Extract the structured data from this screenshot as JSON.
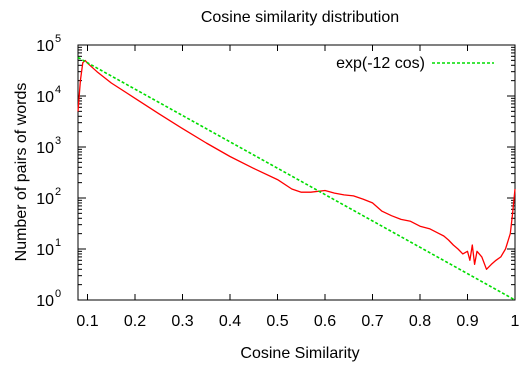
{
  "chart_data": {
    "type": "line",
    "title": "Cosine similarity distribution",
    "xlabel": "Cosine Similarity",
    "ylabel": "Number of pairs of words",
    "xlim": [
      0.08,
      1.0
    ],
    "ylim": [
      1,
      100000
    ],
    "y_scale": "log",
    "x_ticks": [
      0.1,
      0.2,
      0.3,
      0.4,
      0.5,
      0.6,
      0.7,
      0.8,
      0.9,
      1.0
    ],
    "x_tick_labels": [
      "0.1",
      "0.2",
      "0.3",
      "0.4",
      "0.5",
      "0.6",
      "0.7",
      "0.8",
      "0.9",
      "1"
    ],
    "y_tick_exponents": [
      "0",
      "1",
      "2",
      "3",
      "4",
      "5"
    ],
    "y_tick_base": "10",
    "grid": false,
    "legend_position": "top-right",
    "colors": {
      "observed": "#ff0000",
      "fit": "#00dd00"
    },
    "series": [
      {
        "key": "observed",
        "style": "solid",
        "x": [
          0.08,
          0.085,
          0.09,
          0.095,
          0.1,
          0.12,
          0.15,
          0.2,
          0.25,
          0.3,
          0.35,
          0.4,
          0.45,
          0.5,
          0.53,
          0.55,
          0.57,
          0.6,
          0.62,
          0.64,
          0.66,
          0.68,
          0.7,
          0.72,
          0.74,
          0.76,
          0.78,
          0.8,
          0.82,
          0.84,
          0.85,
          0.86,
          0.87,
          0.88,
          0.89,
          0.9,
          0.905,
          0.91,
          0.915,
          0.92,
          0.93,
          0.94,
          0.95,
          0.96,
          0.97,
          0.98,
          0.99,
          0.995,
          1.0
        ],
        "values": [
          5000,
          20000,
          45000,
          50000,
          44000,
          30000,
          18000,
          9000,
          4500,
          2300,
          1200,
          650,
          380,
          230,
          150,
          130,
          130,
          140,
          125,
          115,
          110,
          95,
          80,
          55,
          45,
          38,
          35,
          28,
          25,
          20,
          18,
          15,
          12,
          10,
          8,
          9,
          6,
          12,
          5,
          9,
          7,
          4,
          5,
          6,
          7,
          10,
          20,
          50,
          150
        ]
      },
      {
        "key": "fit",
        "name": "exp(-12 cos)",
        "style": "dashed",
        "x": [
          0.08,
          1.0
        ],
        "values": [
          57000,
          1.0
        ]
      }
    ]
  }
}
